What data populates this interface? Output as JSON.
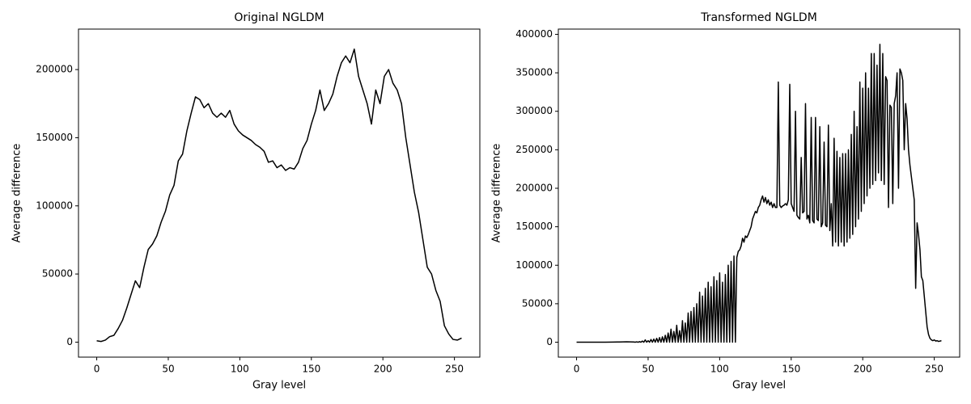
{
  "chart_data": [
    {
      "type": "line",
      "title": "Original NGLDM",
      "xlabel": "Gray level",
      "ylabel": "Average difference",
      "color": "#000000",
      "xlim": [
        -12.75,
        267.75
      ],
      "ylim": [
        -11000,
        229700
      ],
      "xticks": [
        0,
        50,
        100,
        150,
        200,
        250
      ],
      "yticks": [
        0,
        50000,
        100000,
        150000,
        200000
      ],
      "x": [
        0,
        3,
        6,
        9,
        12,
        15,
        18,
        21,
        24,
        27,
        30,
        33,
        36,
        39,
        42,
        45,
        48,
        51,
        54,
        57,
        60,
        63,
        66,
        69,
        72,
        75,
        78,
        81,
        84,
        87,
        90,
        93,
        96,
        99,
        102,
        105,
        108,
        111,
        114,
        117,
        120,
        123,
        126,
        129,
        132,
        135,
        138,
        141,
        144,
        147,
        150,
        153,
        156,
        159,
        162,
        165,
        168,
        171,
        174,
        177,
        180,
        183,
        186,
        189,
        192,
        195,
        198,
        201,
        204,
        207,
        210,
        213,
        216,
        219,
        222,
        225,
        228,
        231,
        234,
        237,
        240,
        243,
        246,
        249,
        252,
        255
      ],
      "values": [
        1000,
        500,
        1500,
        4000,
        5000,
        10000,
        16000,
        25000,
        35000,
        45000,
        40000,
        55000,
        68000,
        72000,
        78000,
        88000,
        96000,
        108000,
        115000,
        133000,
        138000,
        155000,
        168000,
        180000,
        178000,
        172000,
        175000,
        168000,
        165000,
        168000,
        165000,
        170000,
        160000,
        155000,
        152000,
        150000,
        148000,
        145000,
        143000,
        140000,
        132000,
        133000,
        128000,
        130000,
        126000,
        128000,
        127000,
        132000,
        142000,
        148000,
        160000,
        170000,
        185000,
        170000,
        175000,
        182000,
        195000,
        205000,
        210000,
        205000,
        215000,
        195000,
        185000,
        175000,
        160000,
        185000,
        175000,
        195000,
        200000,
        190000,
        185000,
        175000,
        150000,
        130000,
        110000,
        95000,
        75000,
        55000,
        50000,
        38000,
        30000,
        12000,
        6000,
        2000,
        1500,
        3000
      ]
    },
    {
      "type": "line",
      "title": "Transformed NGLDM",
      "xlabel": "Gray level",
      "ylabel": "Average difference",
      "color": "#000000",
      "xlim": [
        -12.75,
        267.75
      ],
      "ylim": [
        -19400,
        406800
      ],
      "xticks": [
        0,
        50,
        100,
        150,
        200,
        250
      ],
      "yticks": [
        0,
        50000,
        100000,
        150000,
        200000,
        250000,
        300000,
        350000,
        400000
      ],
      "x": [
        0,
        5,
        10,
        15,
        20,
        25,
        30,
        35,
        40,
        41,
        42,
        43,
        44,
        45,
        46,
        47,
        48,
        49,
        50,
        51,
        52,
        53,
        54,
        55,
        56,
        57,
        58,
        59,
        60,
        61,
        62,
        63,
        64,
        65,
        66,
        67,
        68,
        69,
        70,
        71,
        72,
        73,
        74,
        75,
        76,
        77,
        78,
        79,
        80,
        81,
        82,
        83,
        84,
        85,
        86,
        87,
        88,
        89,
        90,
        91,
        92,
        93,
        94,
        95,
        96,
        97,
        98,
        99,
        100,
        101,
        102,
        103,
        104,
        105,
        106,
        107,
        108,
        109,
        110,
        111,
        112,
        113,
        114,
        115,
        116,
        117,
        118,
        119,
        120,
        121,
        122,
        123,
        124,
        125,
        126,
        127,
        128,
        129,
        130,
        131,
        132,
        133,
        134,
        135,
        136,
        137,
        138,
        139,
        140,
        141,
        142,
        143,
        144,
        145,
        146,
        147,
        148,
        149,
        150,
        151,
        152,
        153,
        154,
        155,
        156,
        157,
        158,
        159,
        160,
        161,
        162,
        163,
        164,
        165,
        166,
        167,
        168,
        169,
        170,
        171,
        172,
        173,
        174,
        175,
        176,
        177,
        178,
        179,
        180,
        181,
        182,
        183,
        184,
        185,
        186,
        187,
        188,
        189,
        190,
        191,
        192,
        193,
        194,
        195,
        196,
        197,
        198,
        199,
        200,
        201,
        202,
        203,
        204,
        205,
        206,
        207,
        208,
        209,
        210,
        211,
        212,
        213,
        214,
        215,
        216,
        217,
        218,
        219,
        220,
        221,
        222,
        223,
        224,
        225,
        226,
        227,
        228,
        229,
        230,
        231,
        232,
        233,
        234,
        235,
        236,
        237,
        238,
        239,
        240,
        241,
        242,
        243,
        244,
        245,
        246,
        247,
        248,
        249,
        250,
        251,
        252,
        253,
        254,
        255
      ],
      "values": [
        0,
        0,
        0,
        0,
        0,
        200,
        300,
        500,
        300,
        0,
        500,
        0,
        800,
        0,
        1500,
        0,
        3000,
        0,
        2000,
        0,
        3500,
        0,
        4000,
        0,
        5000,
        0,
        6000,
        0,
        7000,
        0,
        9000,
        0,
        12000,
        0,
        17000,
        0,
        14000,
        0,
        22000,
        0,
        15000,
        0,
        28000,
        0,
        25000,
        0,
        38000,
        0,
        40000,
        0,
        45000,
        0,
        50000,
        0,
        65000,
        0,
        60000,
        0,
        70000,
        0,
        78000,
        0,
        72000,
        0,
        85000,
        0,
        80000,
        0,
        90000,
        0,
        78000,
        0,
        88000,
        0,
        100000,
        0,
        105000,
        0,
        112000,
        0,
        110000,
        118000,
        120000,
        125000,
        135000,
        130000,
        138000,
        136000,
        140000,
        145000,
        150000,
        160000,
        165000,
        170000,
        168000,
        175000,
        178000,
        185000,
        190000,
        182000,
        188000,
        180000,
        185000,
        178000,
        182000,
        175000,
        180000,
        175000,
        175000,
        338000,
        178000,
        175000,
        177000,
        178000,
        180000,
        178000,
        185000,
        335000,
        180000,
        175000,
        170000,
        300000,
        165000,
        162000,
        160000,
        240000,
        168000,
        170000,
        310000,
        160000,
        165000,
        155000,
        292000,
        158000,
        155000,
        292000,
        160000,
        158000,
        280000,
        150000,
        155000,
        260000,
        152000,
        150000,
        282000,
        145000,
        180000,
        125000,
        265000,
        130000,
        248000,
        125000,
        240000,
        130000,
        245000,
        125000,
        245000,
        130000,
        250000,
        135000,
        270000,
        140000,
        300000,
        150000,
        280000,
        160000,
        338000,
        170000,
        330000,
        180000,
        350000,
        190000,
        330000,
        200000,
        375000,
        205000,
        375000,
        210000,
        360000,
        220000,
        387000,
        210000,
        375000,
        205000,
        345000,
        340000,
        175000,
        308000,
        305000,
        180000,
        310000,
        320000,
        350000,
        200000,
        355000,
        350000,
        340000,
        250000,
        310000,
        290000,
        250000,
        230000,
        215000,
        200000,
        185000,
        70000,
        155000,
        140000,
        120000,
        85000,
        80000,
        60000,
        40000,
        20000,
        10000,
        5000,
        3000,
        2000,
        3000,
        1500,
        2000,
        1000,
        1500,
        2000
      ]
    }
  ]
}
